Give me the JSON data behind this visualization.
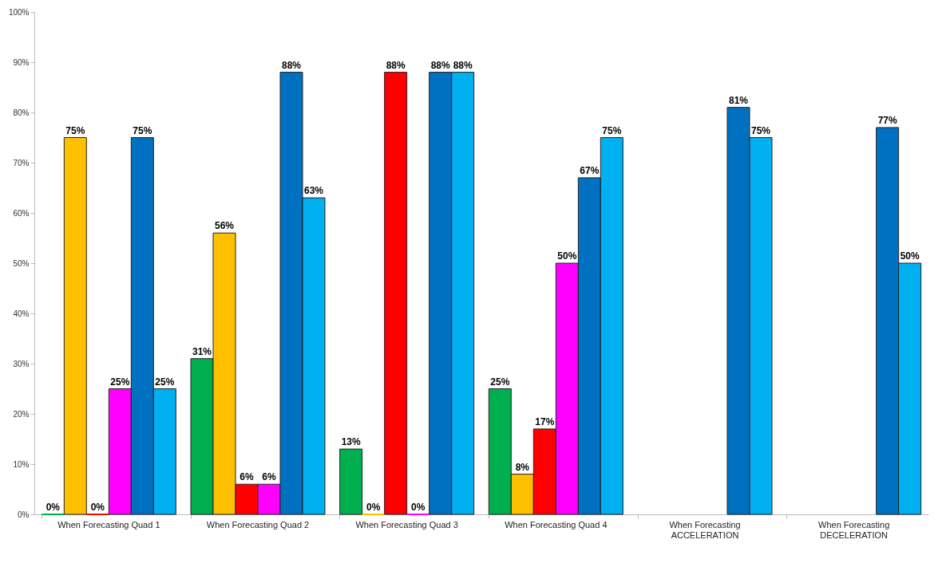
{
  "chart_data": {
    "type": "bar",
    "categories": [
      "When Forecasting Quad 1",
      "When Forecasting Quad 2",
      "When Forecasting Quad 3",
      "When Forecasting Quad 4",
      "When Forecasting\nACCELERATION",
      "When Forecasting\nDECELERATION"
    ],
    "series": [
      {
        "color": "#00b050",
        "values": [
          0,
          31,
          13,
          25,
          null,
          null
        ],
        "value_labels": [
          "0%",
          "31%",
          "13%",
          "25%",
          null,
          null
        ]
      },
      {
        "color": "#ffc000",
        "values": [
          75,
          56,
          0,
          8,
          null,
          null
        ],
        "value_labels": [
          "75%",
          "56%",
          "0%",
          "8%",
          null,
          null
        ]
      },
      {
        "color": "#ff0000",
        "values": [
          0,
          6,
          88,
          17,
          null,
          null
        ],
        "value_labels": [
          "0%",
          "6%",
          "88%",
          "17%",
          null,
          null
        ]
      },
      {
        "color": "#ff00ff",
        "values": [
          25,
          6,
          0,
          50,
          null,
          null
        ],
        "value_labels": [
          "25%",
          "6%",
          "0%",
          "50%",
          null,
          null
        ]
      },
      {
        "color": "#0070c0",
        "values": [
          75,
          88,
          88,
          67,
          81,
          77
        ],
        "value_labels": [
          "75%",
          "88%",
          "88%",
          "67%",
          "81%",
          "77%"
        ]
      },
      {
        "color": "#00b0f0",
        "values": [
          25,
          63,
          88,
          75,
          75,
          50
        ],
        "value_labels": [
          "25%",
          "63%",
          "88%",
          "75%",
          "75%",
          "50%"
        ]
      }
    ],
    "ylim": [
      0,
      100
    ],
    "yticks": [
      {
        "value": 0,
        "label": "0%"
      },
      {
        "value": 10,
        "label": "10%"
      },
      {
        "value": 20,
        "label": "20%"
      },
      {
        "value": 30,
        "label": "30%"
      },
      {
        "value": 40,
        "label": "40%"
      },
      {
        "value": 50,
        "label": "50%"
      },
      {
        "value": 60,
        "label": "60%"
      },
      {
        "value": 70,
        "label": "70%"
      },
      {
        "value": 80,
        "label": "80%"
      },
      {
        "value": 90,
        "label": "90%"
      },
      {
        "value": 100,
        "label": "100%"
      }
    ],
    "grid": false,
    "legend": false
  }
}
